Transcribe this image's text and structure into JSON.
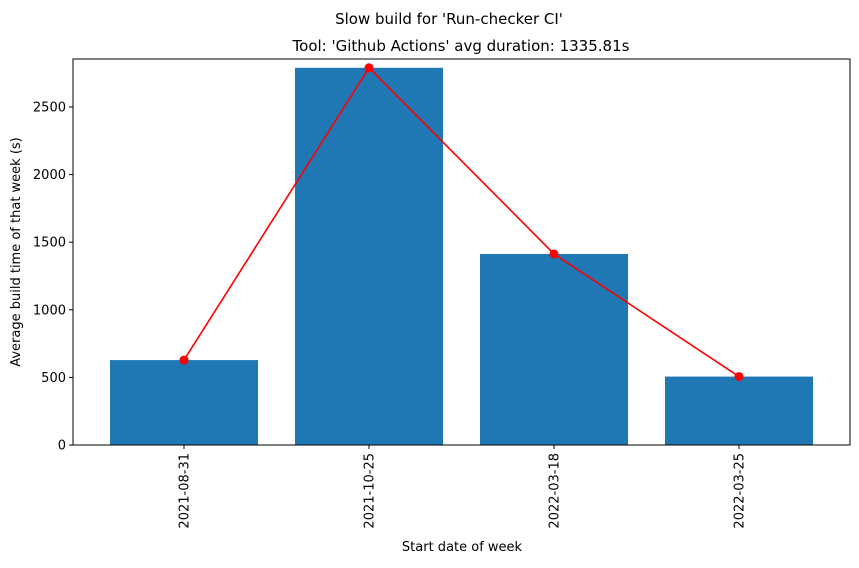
{
  "chart_data": {
    "type": "bar",
    "suptitle": "Slow build for 'Run-checker CI'",
    "title": "Tool: 'Github Actions' avg duration: 1335.81s",
    "xlabel": "Start date of week",
    "ylabel": "Average build time of that week (s)",
    "categories": [
      "2021-08-31",
      "2021-10-25",
      "2022-03-18",
      "2022-03-25"
    ],
    "series": [
      {
        "kind": "bar",
        "color": "#1f77b4",
        "values": [
          628,
          2790,
          1413,
          506
        ]
      },
      {
        "kind": "line",
        "color": "#ff0000",
        "marker": "circle",
        "values": [
          628,
          2790,
          1413,
          506
        ]
      }
    ],
    "ylim": [
      0,
      2855
    ],
    "yticks": [
      0,
      500,
      1000,
      1500,
      2000,
      2500
    ],
    "grid": false,
    "legend": "none",
    "xtick_rotation": 90
  }
}
